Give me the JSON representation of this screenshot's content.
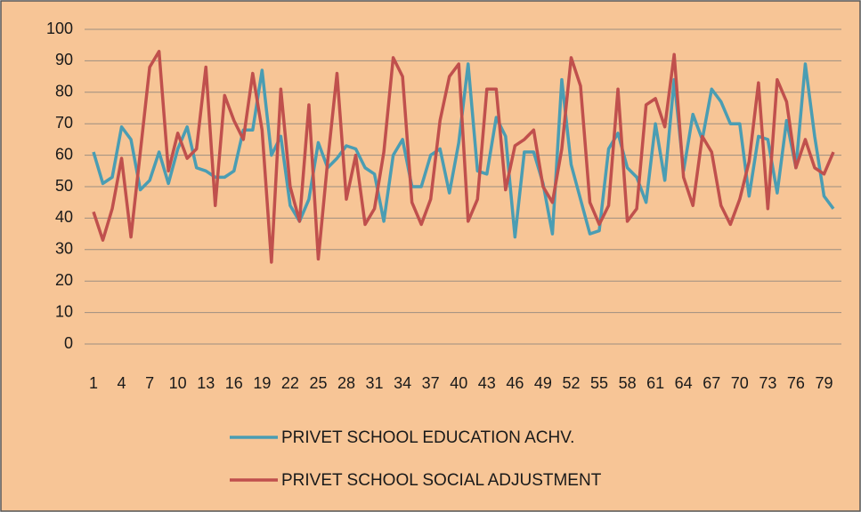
{
  "chart_data": {
    "type": "line",
    "categories": [
      1,
      null,
      null,
      4,
      null,
      null,
      7,
      null,
      null,
      10,
      null,
      null,
      13,
      null,
      null,
      16,
      null,
      null,
      19,
      null,
      null,
      22,
      null,
      null,
      25,
      null,
      null,
      28,
      null,
      null,
      31,
      null,
      null,
      34,
      null,
      null,
      37,
      null,
      null,
      40,
      null,
      null,
      43,
      null,
      null,
      46,
      null,
      null,
      49,
      null,
      null,
      52,
      null,
      null,
      55,
      null,
      null,
      58,
      null,
      null,
      61,
      null,
      null,
      64,
      null,
      null,
      67,
      null,
      null,
      70,
      null,
      null,
      73,
      null,
      null,
      76,
      null,
      null,
      79,
      null
    ],
    "series": [
      {
        "name": "PRIVET SCHOOL EDUCATION ACHV.",
        "color": "#4a9db3",
        "values": [
          61,
          51,
          53,
          69,
          65,
          49,
          52,
          61,
          51,
          62,
          69,
          56,
          55,
          53,
          53,
          55,
          68,
          68,
          87,
          60,
          66,
          44,
          39,
          46,
          64,
          56,
          59,
          63,
          62,
          56,
          54,
          39,
          60,
          65,
          50,
          50,
          60,
          62,
          48,
          64,
          89,
          55,
          54,
          72,
          66,
          34,
          61,
          61,
          51,
          35,
          84,
          57,
          46,
          35,
          36,
          62,
          67,
          56,
          53,
          45,
          70,
          52,
          84,
          55,
          73,
          65,
          81,
          77,
          70,
          70,
          47,
          66,
          65,
          48,
          71,
          56,
          89,
          66,
          47,
          43
        ]
      },
      {
        "name": "PRIVET SCHOOL SOCIAL ADJUSTMENT",
        "color": "#c0504d",
        "values": [
          42,
          33,
          43,
          59,
          34,
          61,
          88,
          93,
          55,
          67,
          59,
          62,
          88,
          44,
          79,
          71,
          65,
          86,
          68,
          26,
          81,
          50,
          39,
          76,
          27,
          58,
          86,
          46,
          60,
          38,
          43,
          61,
          91,
          85,
          45,
          38,
          46,
          71,
          85,
          89,
          39,
          46,
          81,
          81,
          49,
          63,
          65,
          68,
          50,
          45,
          62,
          91,
          82,
          45,
          38,
          44,
          81,
          39,
          43,
          76,
          78,
          69,
          92,
          53,
          44,
          66,
          61,
          44,
          38,
          46,
          58,
          83,
          43,
          84,
          77,
          56,
          65,
          56,
          54,
          61
        ]
      }
    ],
    "ylim": [
      0,
      100
    ],
    "yticks": [
      0,
      10,
      20,
      30,
      40,
      50,
      60,
      70,
      80,
      90,
      100
    ],
    "grid": true
  }
}
